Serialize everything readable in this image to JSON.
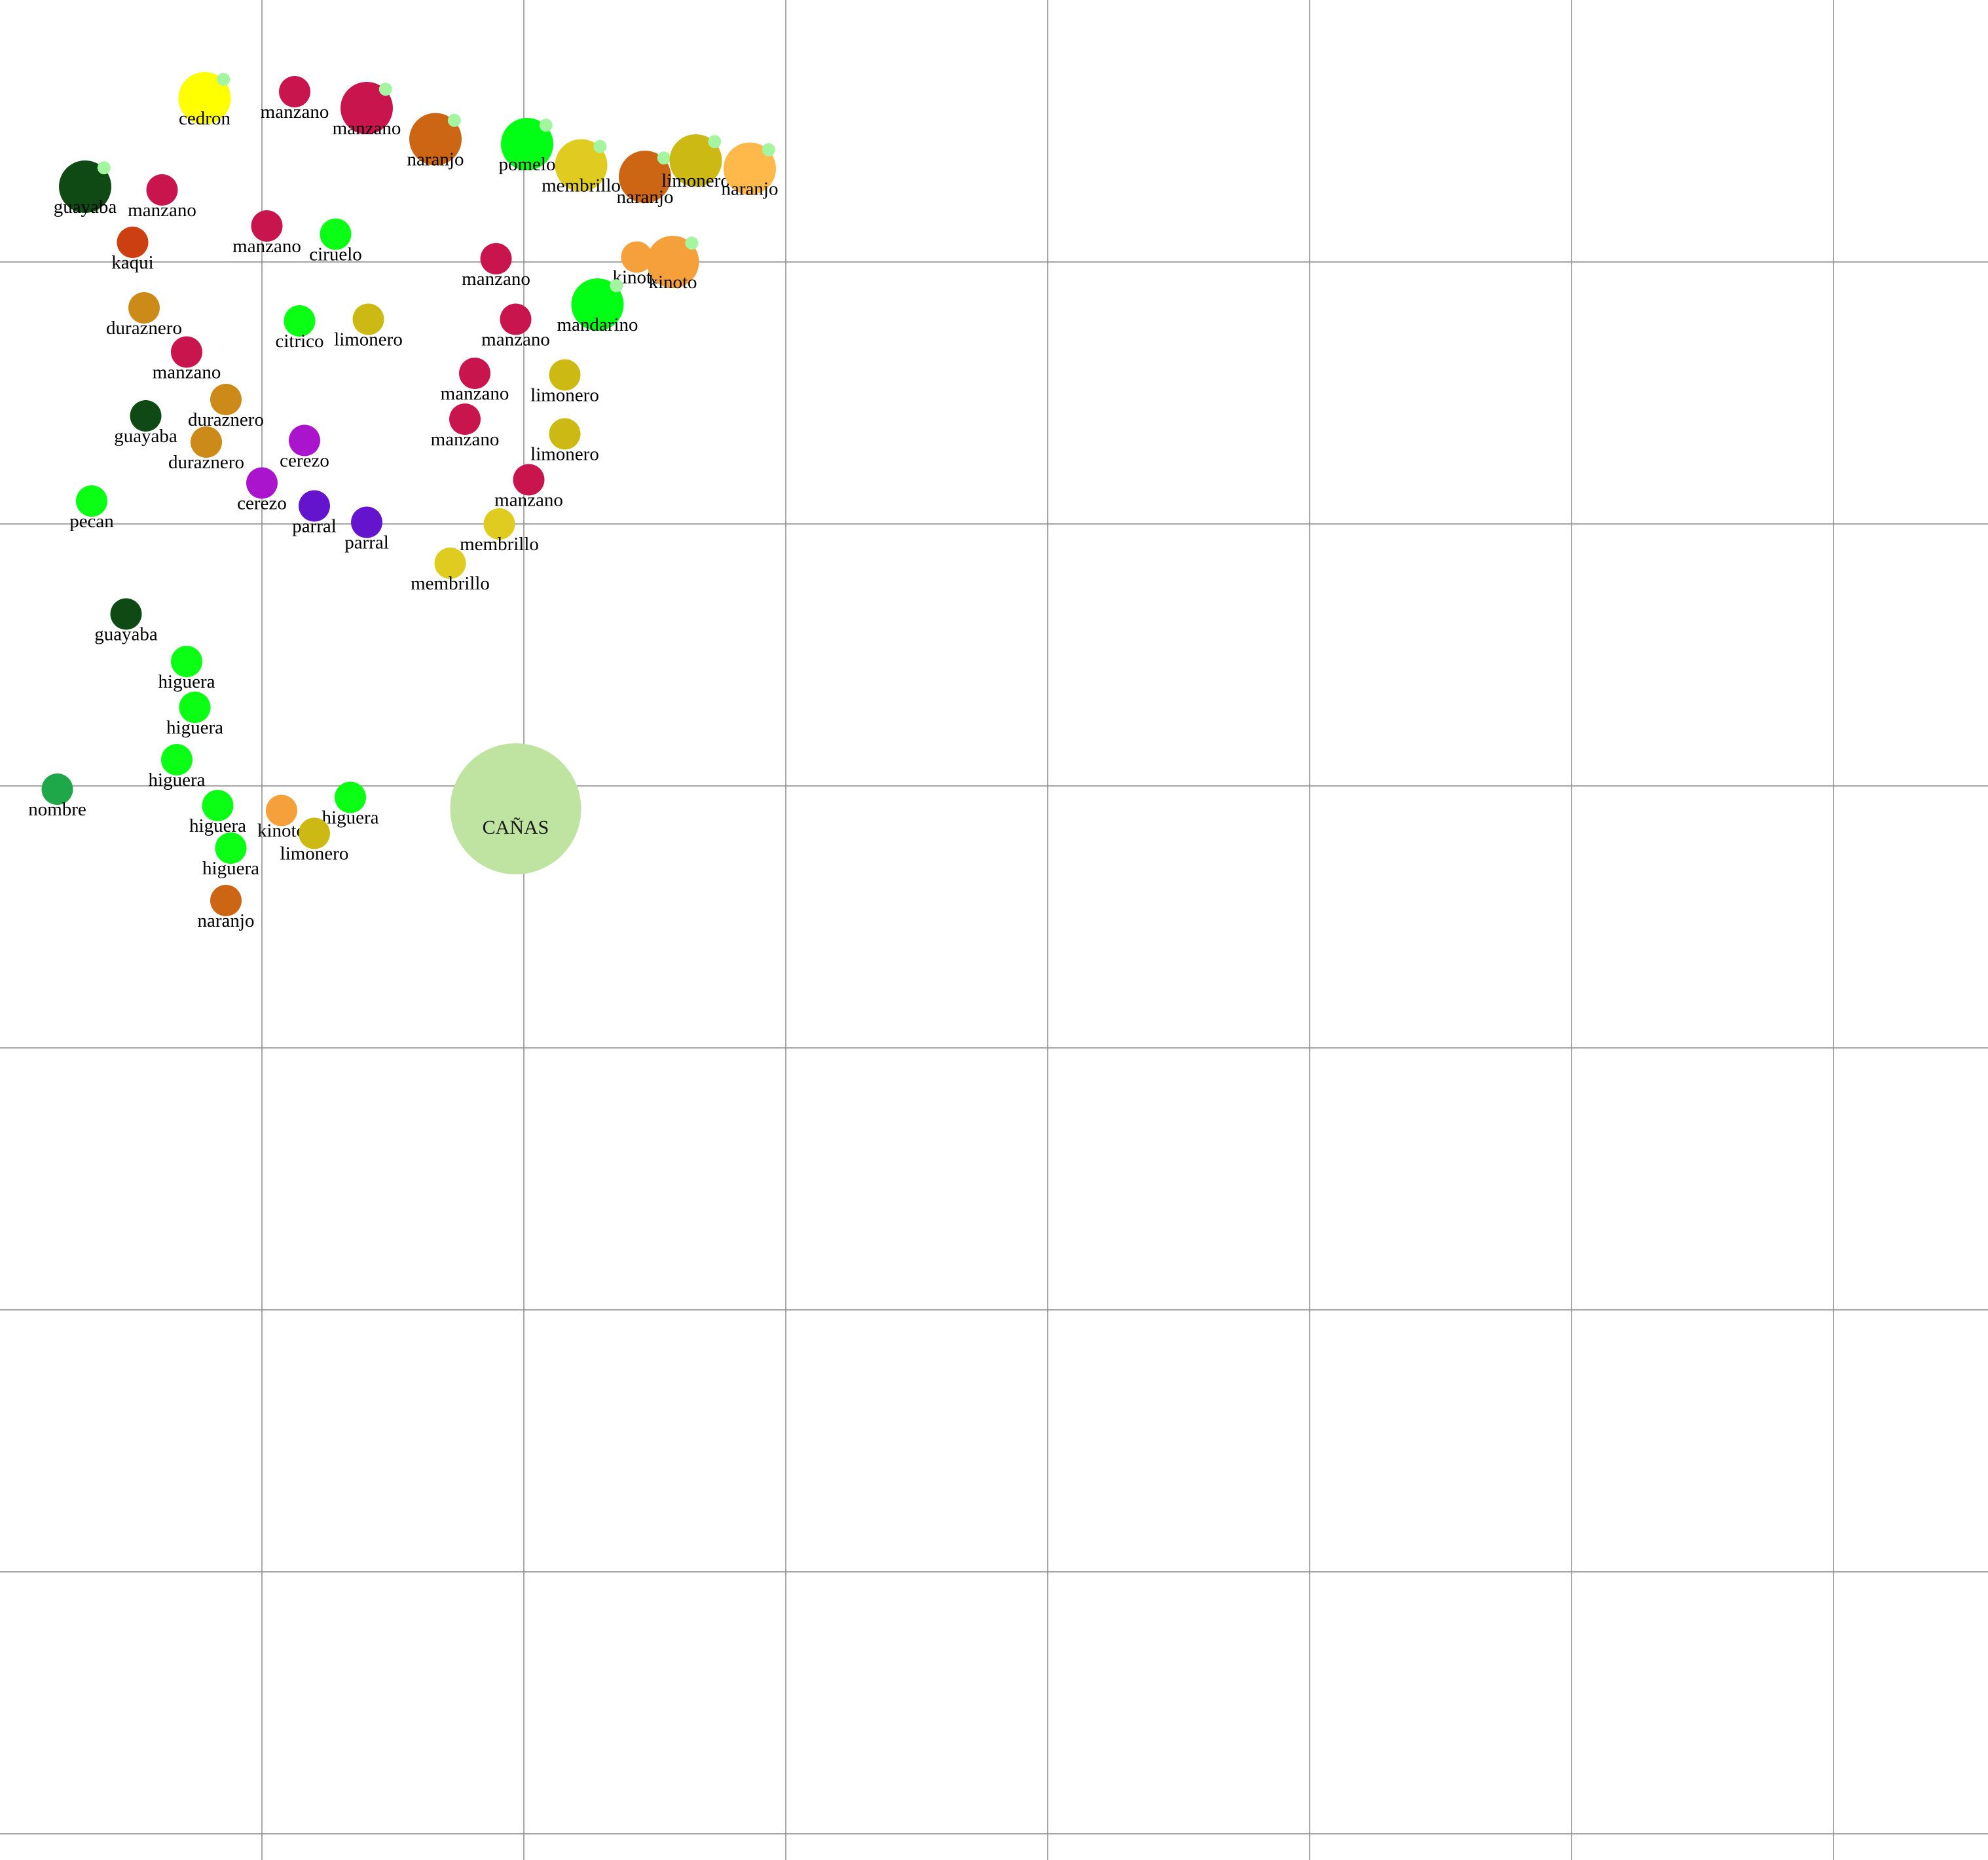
{
  "colors": {
    "background": "#ffffff",
    "grid": "#8a8a8a",
    "badge": "#a4f5a0",
    "species": {
      "manzano": "#c8154e",
      "cedron": "#ffff00",
      "naranjo": "#cc6614",
      "pomelo": "#00ff14",
      "membrillo": "#e0cc20",
      "limonero": "#ccb914",
      "guayaba": "#0f4a14",
      "kaqui": "#cc3f10",
      "ciruelo": "#0aff14",
      "kinoto": "#f5a03a",
      "mandarino": "#00ff14",
      "duraznero": "#cc8a18",
      "citrico": "#0aff14",
      "cerezo": "#aa14cc",
      "pecan": "#0aff14",
      "parral": "#6414cc",
      "higuera": "#0aff14",
      "nombre": "#1fa84a",
      "canas": "#bfe3a0"
    },
    "overrides": {
      "naranjo-large-2": "#ffb94a"
    }
  },
  "grid": {
    "spacing_m": 1
  },
  "zone": {
    "label": "CAÑAS",
    "species": "canas",
    "x": 15.75,
    "y": 24.7,
    "size": "large"
  },
  "trees": [
    {
      "label": "cedron",
      "species": "cedron",
      "x": 6.25,
      "y": 3.0,
      "size": "big",
      "badge": true
    },
    {
      "label": "manzano",
      "species": "manzano",
      "x": 9.0,
      "y": 2.8,
      "size": "small",
      "badge": false
    },
    {
      "label": "manzano",
      "species": "manzano",
      "x": 11.2,
      "y": 3.3,
      "size": "big",
      "badge": true
    },
    {
      "label": "naranjo",
      "species": "naranjo",
      "x": 13.3,
      "y": 4.25,
      "size": "big",
      "badge": true
    },
    {
      "label": "pomelo",
      "species": "pomelo",
      "x": 16.1,
      "y": 4.4,
      "size": "big",
      "badge": true
    },
    {
      "label": "membrillo",
      "species": "membrillo",
      "x": 17.75,
      "y": 5.05,
      "size": "big",
      "badge": true
    },
    {
      "label": "naranjo",
      "species": "naranjo",
      "x": 19.7,
      "y": 5.4,
      "size": "big",
      "badge": true
    },
    {
      "label": "limonero",
      "species": "limonero",
      "x": 21.25,
      "y": 4.9,
      "size": "big",
      "badge": true
    },
    {
      "label": "naranjo",
      "species": "naranjo",
      "x": 22.9,
      "y": 5.15,
      "size": "big",
      "badge": true,
      "color_key": "naranjo-large-2"
    },
    {
      "label": "guayaba",
      "species": "guayaba",
      "x": 2.6,
      "y": 5.7,
      "size": "big",
      "badge": true
    },
    {
      "label": "manzano",
      "species": "manzano",
      "x": 4.95,
      "y": 5.8,
      "size": "small",
      "badge": false
    },
    {
      "label": "manzano",
      "species": "manzano",
      "x": 8.15,
      "y": 6.9,
      "size": "small",
      "badge": false
    },
    {
      "label": "ciruelo",
      "species": "ciruelo",
      "x": 10.25,
      "y": 7.15,
      "size": "small",
      "badge": false
    },
    {
      "label": "kaqui",
      "species": "kaqui",
      "x": 4.05,
      "y": 7.4,
      "size": "small",
      "badge": false
    },
    {
      "label": "manzano",
      "species": "manzano",
      "x": 15.15,
      "y": 7.9,
      "size": "small",
      "badge": false
    },
    {
      "label": "kinoto",
      "species": "kinoto",
      "x": 19.45,
      "y": 7.85,
      "size": "small",
      "badge": false
    },
    {
      "label": "kinoto",
      "species": "kinoto",
      "x": 20.55,
      "y": 8.0,
      "size": "big",
      "badge": true
    },
    {
      "label": "mandarino",
      "species": "mandarino",
      "x": 18.25,
      "y": 9.3,
      "size": "big",
      "badge": true
    },
    {
      "label": "duraznero",
      "species": "duraznero",
      "x": 4.4,
      "y": 9.4,
      "size": "small",
      "badge": false
    },
    {
      "label": "citrico",
      "species": "citrico",
      "x": 9.15,
      "y": 9.8,
      "size": "small",
      "badge": false
    },
    {
      "label": "limonero",
      "species": "limonero",
      "x": 11.25,
      "y": 9.75,
      "size": "small",
      "badge": false
    },
    {
      "label": "manzano",
      "species": "manzano",
      "x": 15.75,
      "y": 9.75,
      "size": "small",
      "badge": false
    },
    {
      "label": "manzano",
      "species": "manzano",
      "x": 5.7,
      "y": 10.75,
      "size": "small",
      "badge": false
    },
    {
      "label": "manzano",
      "species": "manzano",
      "x": 14.5,
      "y": 11.4,
      "size": "small",
      "badge": false
    },
    {
      "label": "limonero",
      "species": "limonero",
      "x": 17.25,
      "y": 11.45,
      "size": "small",
      "badge": false
    },
    {
      "label": "duraznero",
      "species": "duraznero",
      "x": 6.9,
      "y": 12.2,
      "size": "small",
      "badge": false
    },
    {
      "label": "guayaba",
      "species": "guayaba",
      "x": 4.45,
      "y": 12.7,
      "size": "small",
      "badge": false
    },
    {
      "label": "manzano",
      "species": "manzano",
      "x": 14.2,
      "y": 12.8,
      "size": "small",
      "badge": false
    },
    {
      "label": "limonero",
      "species": "limonero",
      "x": 17.25,
      "y": 13.25,
      "size": "small",
      "badge": false
    },
    {
      "label": "duraznero",
      "species": "duraznero",
      "x": 6.3,
      "y": 13.5,
      "size": "small",
      "badge": false
    },
    {
      "label": "cerezo",
      "species": "cerezo",
      "x": 9.3,
      "y": 13.45,
      "size": "small",
      "badge": false
    },
    {
      "label": "manzano",
      "species": "manzano",
      "x": 16.15,
      "y": 14.65,
      "size": "small",
      "badge": false
    },
    {
      "label": "cerezo",
      "species": "cerezo",
      "x": 8.0,
      "y": 14.75,
      "size": "small",
      "badge": false
    },
    {
      "label": "pecan",
      "species": "pecan",
      "x": 2.8,
      "y": 15.3,
      "size": "small",
      "badge": false
    },
    {
      "label": "parral",
      "species": "parral",
      "x": 9.6,
      "y": 15.45,
      "size": "small",
      "badge": false
    },
    {
      "label": "parral",
      "species": "parral",
      "x": 11.2,
      "y": 15.95,
      "size": "small",
      "badge": false
    },
    {
      "label": "membrillo",
      "species": "membrillo",
      "x": 15.25,
      "y": 16.0,
      "size": "small",
      "badge": false
    },
    {
      "label": "membrillo",
      "species": "membrillo",
      "x": 13.75,
      "y": 17.2,
      "size": "small",
      "badge": false
    },
    {
      "label": "guayaba",
      "species": "guayaba",
      "x": 3.85,
      "y": 18.75,
      "size": "small",
      "badge": false
    },
    {
      "label": "higuera",
      "species": "higuera",
      "x": 5.7,
      "y": 20.2,
      "size": "small",
      "badge": false
    },
    {
      "label": "higuera",
      "species": "higuera",
      "x": 5.95,
      "y": 21.6,
      "size": "small",
      "badge": false
    },
    {
      "label": "higuera",
      "species": "higuera",
      "x": 5.4,
      "y": 23.2,
      "size": "small",
      "badge": false
    },
    {
      "label": "nombre",
      "species": "nombre",
      "x": 1.75,
      "y": 24.1,
      "size": "small",
      "badge": false
    },
    {
      "label": "higuera",
      "species": "higuera",
      "x": 10.7,
      "y": 24.35,
      "size": "small",
      "badge": false
    },
    {
      "label": "higuera",
      "species": "higuera",
      "x": 6.65,
      "y": 24.6,
      "size": "small",
      "badge": false
    },
    {
      "label": "kinoto",
      "species": "kinoto",
      "x": 8.6,
      "y": 24.75,
      "size": "small",
      "badge": false
    },
    {
      "label": "limonero",
      "species": "limonero",
      "x": 9.6,
      "y": 25.45,
      "size": "small",
      "badge": false
    },
    {
      "label": "higuera",
      "species": "higuera",
      "x": 7.05,
      "y": 25.9,
      "size": "small",
      "badge": false
    },
    {
      "label": "naranjo",
      "species": "naranjo",
      "x": 6.9,
      "y": 27.5,
      "size": "small",
      "badge": false
    }
  ]
}
